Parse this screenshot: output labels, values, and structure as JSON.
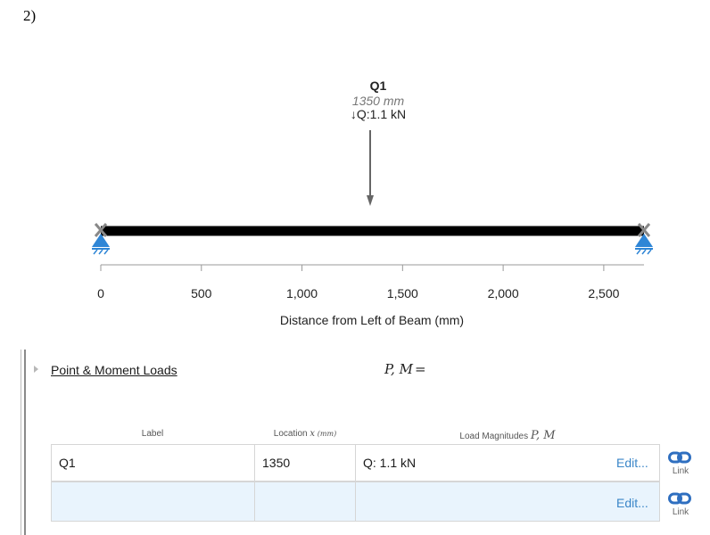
{
  "problem_number": "2)",
  "diagram": {
    "axis_ticks": [
      "0",
      "500",
      "1,000",
      "1,500",
      "2,000",
      "2,500"
    ],
    "axis_label": "Distance from Left of Beam (mm)",
    "axis_range": [
      0,
      2700
    ],
    "beam_length_mm": 2700,
    "load": {
      "name": "Q1",
      "location_text": "1350 mm",
      "location_mm": 1350,
      "magnitude_text": "↓Q:1.1 kN"
    },
    "colors": {
      "beam": "#000000",
      "support": "#2f86d6",
      "load_arrow": "#666666",
      "axis": "#999999"
    },
    "support_icons": [
      "pinned-support-icon",
      "pinned-support-icon"
    ]
  },
  "loads_section": {
    "title": "Point & Moment Loads",
    "math_label": "P, M",
    "math_eq": "=",
    "columns": {
      "label": "Label",
      "location_prefix": "Location",
      "location_var": "x",
      "location_unit": "(mm)",
      "magnitudes_prefix": "Load Magnitudes",
      "magnitudes_var": "P, M"
    },
    "rows": [
      {
        "label": "Q1",
        "location": "1350",
        "magnitude": "Q: 1.1 kN",
        "edit_label": "Edit...",
        "link_label": "Link"
      },
      {
        "label": "",
        "location": "",
        "magnitude": "",
        "edit_label": "Edit...",
        "link_label": "Link"
      }
    ],
    "link_icon": "chain-link-icon"
  }
}
